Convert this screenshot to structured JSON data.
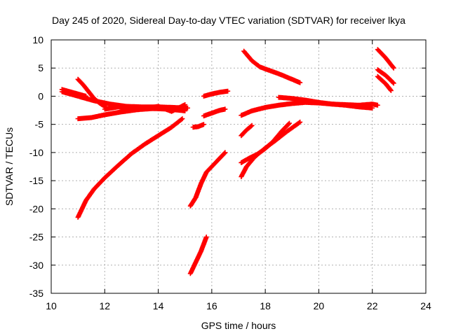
{
  "chart_data": {
    "type": "scatter",
    "title": "Day 245 of 2020, Sidereal Day-to-day VTEC variation (SDTVAR) for receiver lkya",
    "xlabel": "GPS time / hours",
    "ylabel": "SDTVAR / TECUs",
    "xlim": [
      10,
      24
    ],
    "ylim": [
      -35,
      10
    ],
    "x_ticks": [
      10,
      12,
      14,
      16,
      18,
      20,
      22,
      24
    ],
    "y_ticks": [
      10,
      5,
      0,
      -5,
      -10,
      -15,
      -20,
      -25,
      -30,
      -35
    ],
    "grid": true,
    "marker": "plus",
    "color": "#ff0000",
    "traces": [
      {
        "x": [
          10.4,
          11.0,
          11.6,
          12.2,
          12.8,
          13.4,
          14.0,
          14.6,
          15.1
        ],
        "y": [
          0.8,
          0.0,
          -0.8,
          -1.4,
          -1.8,
          -1.9,
          -1.9,
          -2.0,
          -2.1
        ]
      },
      {
        "x": [
          10.4,
          10.7,
          11.0,
          11.3
        ],
        "y": [
          1.2,
          0.8,
          0.4,
          0.0
        ]
      },
      {
        "x": [
          11.0,
          11.2,
          11.4,
          11.6,
          11.8,
          12.0
        ],
        "y": [
          3.0,
          2.0,
          0.8,
          -0.4,
          -1.2,
          -1.8
        ]
      },
      {
        "x": [
          11.0,
          11.5,
          12.0,
          12.6,
          13.2,
          13.8,
          14.4,
          15.0
        ],
        "y": [
          -4.0,
          -3.8,
          -3.3,
          -2.8,
          -2.4,
          -2.2,
          -2.3,
          -2.6
        ]
      },
      {
        "x": [
          12.0,
          12.5,
          13.0,
          13.5,
          14.0,
          14.5,
          15.0
        ],
        "y": [
          -2.3,
          -1.9,
          -2.1,
          -2.2,
          -1.8,
          -2.7,
          -1.5
        ]
      },
      {
        "x": [
          11.0,
          11.3,
          11.6,
          12.0,
          12.5,
          13.0,
          13.5,
          14.0,
          14.5,
          14.9
        ],
        "y": [
          -21.5,
          -18.5,
          -16.5,
          -14.5,
          -12.3,
          -10.2,
          -8.5,
          -7.0,
          -5.5,
          -4.0
        ]
      },
      {
        "x": [
          15.3,
          15.5,
          15.7
        ],
        "y": [
          -5.5,
          -5.4,
          -5.0
        ]
      },
      {
        "x": [
          15.2,
          15.4,
          15.6,
          15.8,
          16.0,
          16.2,
          16.5
        ],
        "y": [
          -19.5,
          -18.0,
          -15.5,
          -13.5,
          -12.5,
          -11.5,
          -10.0
        ]
      },
      {
        "x": [
          15.2,
          15.4,
          15.6,
          15.8
        ],
        "y": [
          -31.5,
          -29.5,
          -27.5,
          -25.0
        ]
      },
      {
        "x": [
          15.7,
          16.0,
          16.3,
          16.5
        ],
        "y": [
          -3.5,
          -3.0,
          -2.5,
          -2.3
        ]
      },
      {
        "x": [
          15.7,
          16.0,
          16.3,
          16.6
        ],
        "y": [
          0.0,
          0.4,
          0.7,
          0.9
        ]
      },
      {
        "x": [
          17.2,
          17.5,
          17.8,
          18.2,
          18.6,
          19.0,
          19.3
        ],
        "y": [
          8.0,
          6.3,
          5.2,
          4.5,
          3.8,
          3.0,
          2.4
        ]
      },
      {
        "x": [
          17.1,
          17.5,
          18.0,
          18.5,
          19.0,
          19.5,
          20.0,
          20.5,
          21.0,
          21.5,
          22.0,
          22.2
        ],
        "y": [
          -3.4,
          -2.6,
          -2.0,
          -1.6,
          -1.3,
          -1.1,
          -1.2,
          -1.4,
          -1.5,
          -1.6,
          -1.4,
          -1.6
        ]
      },
      {
        "x": [
          18.5,
          19.0,
          19.5,
          20.0,
          20.5,
          21.0,
          21.5,
          22.0
        ],
        "y": [
          -0.2,
          -0.4,
          -0.7,
          -1.1,
          -1.4,
          -1.6,
          -1.9,
          -2.1
        ]
      },
      {
        "x": [
          17.1,
          17.3,
          17.5
        ],
        "y": [
          -7.0,
          -6.0,
          -5.2
        ]
      },
      {
        "x": [
          17.1,
          17.4,
          17.7,
          18.0,
          18.3,
          18.6,
          18.9
        ],
        "y": [
          -11.8,
          -11.0,
          -10.3,
          -9.3,
          -8.0,
          -6.3,
          -4.8
        ]
      },
      {
        "x": [
          17.1,
          17.3,
          17.6,
          18.0,
          18.4,
          18.8,
          19.3
        ],
        "y": [
          -14.3,
          -12.5,
          -10.8,
          -9.2,
          -7.8,
          -6.3,
          -4.6
        ]
      },
      {
        "x": [
          22.2,
          22.5,
          22.8
        ],
        "y": [
          8.3,
          6.8,
          5.0
        ]
      },
      {
        "x": [
          22.2,
          22.5,
          22.8
        ],
        "y": [
          4.7,
          3.7,
          2.3
        ]
      },
      {
        "x": [
          22.2,
          22.5,
          22.7
        ],
        "y": [
          3.5,
          2.2,
          1.0
        ]
      }
    ]
  }
}
